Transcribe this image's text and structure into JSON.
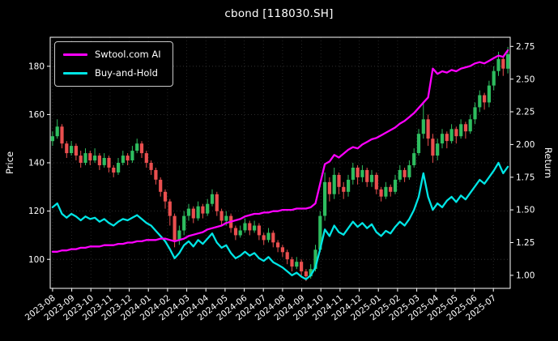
{
  "window": {
    "title": "cbond [118030.SH]"
  },
  "chart_data": {
    "type": "candlestick+line",
    "title": "cbond [118030.SH]",
    "background": "#000000",
    "foreground": "#ffffff",
    "grid": true,
    "legend": {
      "position": "upper-left",
      "entries": [
        "Swtool.com AI",
        "Buy-and-Hold"
      ]
    },
    "left_axis": {
      "label": "Price",
      "ticks": [
        100,
        120,
        140,
        160,
        180
      ],
      "range": [
        88,
        192
      ]
    },
    "right_axis": {
      "label": "Return",
      "ticks": [
        1.0,
        1.25,
        1.5,
        1.75,
        2.0,
        2.25,
        2.5,
        2.75
      ],
      "range": [
        0.9,
        2.82
      ]
    },
    "x_ticks": [
      "2023-08",
      "2023-09",
      "2023-10",
      "2023-11",
      "2023-12",
      "2024-01",
      "2024-02",
      "2024-03",
      "2024-04",
      "2024-05",
      "2024-06",
      "2024-07",
      "2024-08",
      "2024-09",
      "2024-10",
      "2024-11",
      "2024-12",
      "2025-01",
      "2025-02",
      "2025-03",
      "2025-04",
      "2025-05",
      "2025-06",
      "2025-07"
    ],
    "candles": {
      "name": "cbond price (weekly, OHLC)",
      "axis": "left",
      "up_color": "#2ebd5f",
      "down_color": "#ea4f4f",
      "ohlc": [
        [
          149,
          153,
          147,
          151
        ],
        [
          151,
          158,
          150,
          155
        ],
        [
          155,
          156,
          146,
          148
        ],
        [
          148,
          149,
          142,
          144
        ],
        [
          144,
          149,
          143,
          147
        ],
        [
          147,
          148,
          141,
          143
        ],
        [
          143,
          145,
          138,
          140
        ],
        [
          140,
          146,
          139,
          144
        ],
        [
          144,
          145,
          139,
          141
        ],
        [
          141,
          146,
          140,
          143
        ],
        [
          143,
          144,
          137,
          139
        ],
        [
          139,
          144,
          138,
          142
        ],
        [
          142,
          143,
          136,
          138
        ],
        [
          138,
          139,
          134,
          136
        ],
        [
          136,
          142,
          135,
          140
        ],
        [
          140,
          145,
          139,
          143
        ],
        [
          143,
          144,
          139,
          141
        ],
        [
          141,
          147,
          140,
          145
        ],
        [
          145,
          150,
          144,
          148
        ],
        [
          148,
          149,
          142,
          144
        ],
        [
          144,
          145,
          138,
          140
        ],
        [
          140,
          141,
          135,
          137
        ],
        [
          137,
          138,
          131,
          133
        ],
        [
          133,
          134,
          126,
          128
        ],
        [
          128,
          129,
          121,
          124
        ],
        [
          124,
          125,
          114,
          118
        ],
        [
          118,
          119,
          105,
          108
        ],
        [
          108,
          114,
          106,
          112
        ],
        [
          112,
          120,
          110,
          118
        ],
        [
          118,
          123,
          116,
          121
        ],
        [
          121,
          122,
          115,
          117
        ],
        [
          117,
          124,
          116,
          122
        ],
        [
          122,
          123,
          117,
          119
        ],
        [
          119,
          125,
          118,
          123
        ],
        [
          123,
          129,
          122,
          127
        ],
        [
          127,
          128,
          118,
          120
        ],
        [
          120,
          121,
          114,
          116
        ],
        [
          116,
          120,
          114,
          118
        ],
        [
          118,
          119,
          111,
          113
        ],
        [
          113,
          114,
          108,
          110
        ],
        [
          110,
          114,
          109,
          112
        ],
        [
          112,
          117,
          111,
          115
        ],
        [
          115,
          116,
          110,
          112
        ],
        [
          112,
          116,
          111,
          114
        ],
        [
          114,
          115,
          108,
          110
        ],
        [
          110,
          111,
          106,
          108
        ],
        [
          108,
          113,
          107,
          111
        ],
        [
          111,
          112,
          105,
          107
        ],
        [
          107,
          108,
          103,
          105
        ],
        [
          105,
          106,
          101,
          103
        ],
        [
          103,
          104,
          98,
          100
        ],
        [
          100,
          101,
          95,
          97
        ],
        [
          97,
          101,
          96,
          99
        ],
        [
          99,
          100,
          93,
          95
        ],
        [
          95,
          96,
          91,
          93
        ],
        [
          93,
          98,
          92,
          96
        ],
        [
          96,
          106,
          95,
          104
        ],
        [
          104,
          120,
          103,
          118
        ],
        [
          118,
          136,
          116,
          132
        ],
        [
          132,
          134,
          124,
          127
        ],
        [
          127,
          138,
          125,
          135
        ],
        [
          135,
          136,
          127,
          130
        ],
        [
          130,
          132,
          125,
          128
        ],
        [
          128,
          135,
          126,
          133
        ],
        [
          133,
          140,
          131,
          138
        ],
        [
          138,
          139,
          131,
          134
        ],
        [
          134,
          139,
          132,
          137
        ],
        [
          137,
          138,
          130,
          132
        ],
        [
          132,
          137,
          130,
          135
        ],
        [
          135,
          136,
          127,
          129
        ],
        [
          129,
          130,
          124,
          126
        ],
        [
          126,
          132,
          125,
          130
        ],
        [
          130,
          131,
          126,
          128
        ],
        [
          128,
          135,
          127,
          133
        ],
        [
          133,
          139,
          132,
          137
        ],
        [
          137,
          138,
          132,
          134
        ],
        [
          134,
          141,
          133,
          139
        ],
        [
          139,
          146,
          138,
          144
        ],
        [
          144,
          154,
          143,
          152
        ],
        [
          152,
          165,
          150,
          158
        ],
        [
          158,
          160,
          147,
          150
        ],
        [
          150,
          152,
          140,
          143
        ],
        [
          143,
          150,
          141,
          148
        ],
        [
          148,
          154,
          146,
          152
        ],
        [
          152,
          153,
          146,
          149
        ],
        [
          149,
          156,
          148,
          154
        ],
        [
          154,
          155,
          148,
          151
        ],
        [
          151,
          158,
          150,
          156
        ],
        [
          156,
          157,
          150,
          153
        ],
        [
          153,
          160,
          152,
          158
        ],
        [
          158,
          165,
          156,
          163
        ],
        [
          163,
          170,
          161,
          168
        ],
        [
          168,
          169,
          162,
          165
        ],
        [
          165,
          174,
          163,
          172
        ],
        [
          172,
          180,
          170,
          178
        ],
        [
          178,
          186,
          176,
          183
        ],
        [
          183,
          184,
          176,
          179
        ],
        [
          179,
          188,
          177,
          185
        ]
      ]
    },
    "series": [
      {
        "name": "Swtool.com AI",
        "color": "#ff00ff",
        "axis": "right",
        "values": [
          1.18,
          1.18,
          1.19,
          1.19,
          1.2,
          1.2,
          1.21,
          1.21,
          1.22,
          1.22,
          1.22,
          1.23,
          1.23,
          1.23,
          1.24,
          1.24,
          1.25,
          1.25,
          1.26,
          1.26,
          1.27,
          1.27,
          1.27,
          1.28,
          1.28,
          1.27,
          1.26,
          1.27,
          1.28,
          1.3,
          1.31,
          1.32,
          1.33,
          1.35,
          1.36,
          1.37,
          1.38,
          1.4,
          1.41,
          1.42,
          1.43,
          1.45,
          1.46,
          1.47,
          1.47,
          1.48,
          1.48,
          1.49,
          1.49,
          1.5,
          1.5,
          1.5,
          1.51,
          1.51,
          1.51,
          1.52,
          1.55,
          1.7,
          1.85,
          1.87,
          1.92,
          1.9,
          1.93,
          1.96,
          1.98,
          1.97,
          2.0,
          2.02,
          2.04,
          2.05,
          2.07,
          2.09,
          2.11,
          2.13,
          2.16,
          2.18,
          2.21,
          2.24,
          2.28,
          2.32,
          2.36,
          2.58,
          2.54,
          2.56,
          2.55,
          2.57,
          2.56,
          2.58,
          2.59,
          2.6,
          2.62,
          2.63,
          2.62,
          2.64,
          2.66,
          2.68,
          2.67,
          2.72
        ]
      },
      {
        "name": "Buy-and-Hold",
        "color": "#00e5e5",
        "axis": "right",
        "values": [
          1.52,
          1.55,
          1.47,
          1.44,
          1.47,
          1.45,
          1.42,
          1.45,
          1.43,
          1.44,
          1.41,
          1.43,
          1.4,
          1.38,
          1.41,
          1.43,
          1.42,
          1.44,
          1.46,
          1.43,
          1.4,
          1.38,
          1.34,
          1.3,
          1.26,
          1.2,
          1.13,
          1.17,
          1.23,
          1.26,
          1.22,
          1.27,
          1.24,
          1.28,
          1.32,
          1.25,
          1.21,
          1.23,
          1.17,
          1.13,
          1.15,
          1.18,
          1.15,
          1.17,
          1.13,
          1.11,
          1.14,
          1.1,
          1.08,
          1.06,
          1.03,
          1.0,
          1.02,
          0.99,
          0.97,
          1.0,
          1.06,
          1.2,
          1.35,
          1.3,
          1.38,
          1.33,
          1.31,
          1.36,
          1.41,
          1.37,
          1.4,
          1.36,
          1.39,
          1.33,
          1.3,
          1.34,
          1.32,
          1.37,
          1.41,
          1.38,
          1.43,
          1.5,
          1.6,
          1.78,
          1.6,
          1.5,
          1.55,
          1.52,
          1.57,
          1.6,
          1.56,
          1.61,
          1.58,
          1.63,
          1.68,
          1.73,
          1.7,
          1.75,
          1.8,
          1.86,
          1.78,
          1.83
        ]
      }
    ]
  }
}
